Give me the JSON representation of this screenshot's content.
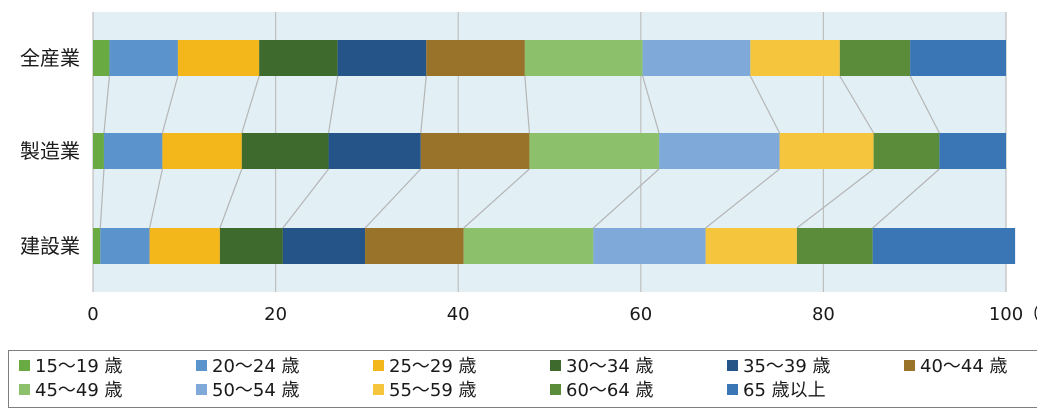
{
  "chart_data": {
    "type": "bar",
    "orientation": "horizontal",
    "stacked": "percent",
    "categories": [
      "全産業",
      "製造業",
      "建設業"
    ],
    "xlim": [
      0,
      100
    ],
    "x_ticks": [
      "0",
      "20",
      "40",
      "60",
      "80",
      "100"
    ],
    "x_unit": "（%）",
    "grid": true,
    "connector_lines": true,
    "legend_position": "bottom",
    "series": [
      {
        "name": "15〜19 歳",
        "color": "#6aaa43",
        "values": [
          1.8,
          1.2,
          0.8
        ]
      },
      {
        "name": "20〜24 歳",
        "color": "#5b93cc",
        "values": [
          7.5,
          6.4,
          5.4
        ]
      },
      {
        "name": "25〜29 歳",
        "color": "#f4b71b",
        "values": [
          8.9,
          8.7,
          7.7
        ]
      },
      {
        "name": "30〜34 歳",
        "color": "#3f6a2e",
        "values": [
          8.6,
          9.5,
          6.9
        ]
      },
      {
        "name": "35〜39 歳",
        "color": "#255488",
        "values": [
          9.7,
          10.1,
          9.0
        ]
      },
      {
        "name": "40〜44 歳",
        "color": "#987329",
        "values": [
          10.8,
          11.9,
          10.8
        ]
      },
      {
        "name": "45〜49 歳",
        "color": "#8cc06b",
        "values": [
          12.9,
          14.2,
          14.2
        ]
      },
      {
        "name": "50〜54 歳",
        "color": "#7ea9d8",
        "values": [
          11.8,
          13.2,
          12.3
        ]
      },
      {
        "name": "55〜59 歳",
        "color": "#f6c53e",
        "values": [
          9.8,
          10.3,
          10.0
        ]
      },
      {
        "name": "60〜64 歳",
        "color": "#5a8c3a",
        "values": [
          7.7,
          7.2,
          8.3
        ]
      },
      {
        "name": "65 歳以上",
        "color": "#3a76b5",
        "values": [
          10.5,
          7.3,
          15.6
        ]
      }
    ]
  }
}
